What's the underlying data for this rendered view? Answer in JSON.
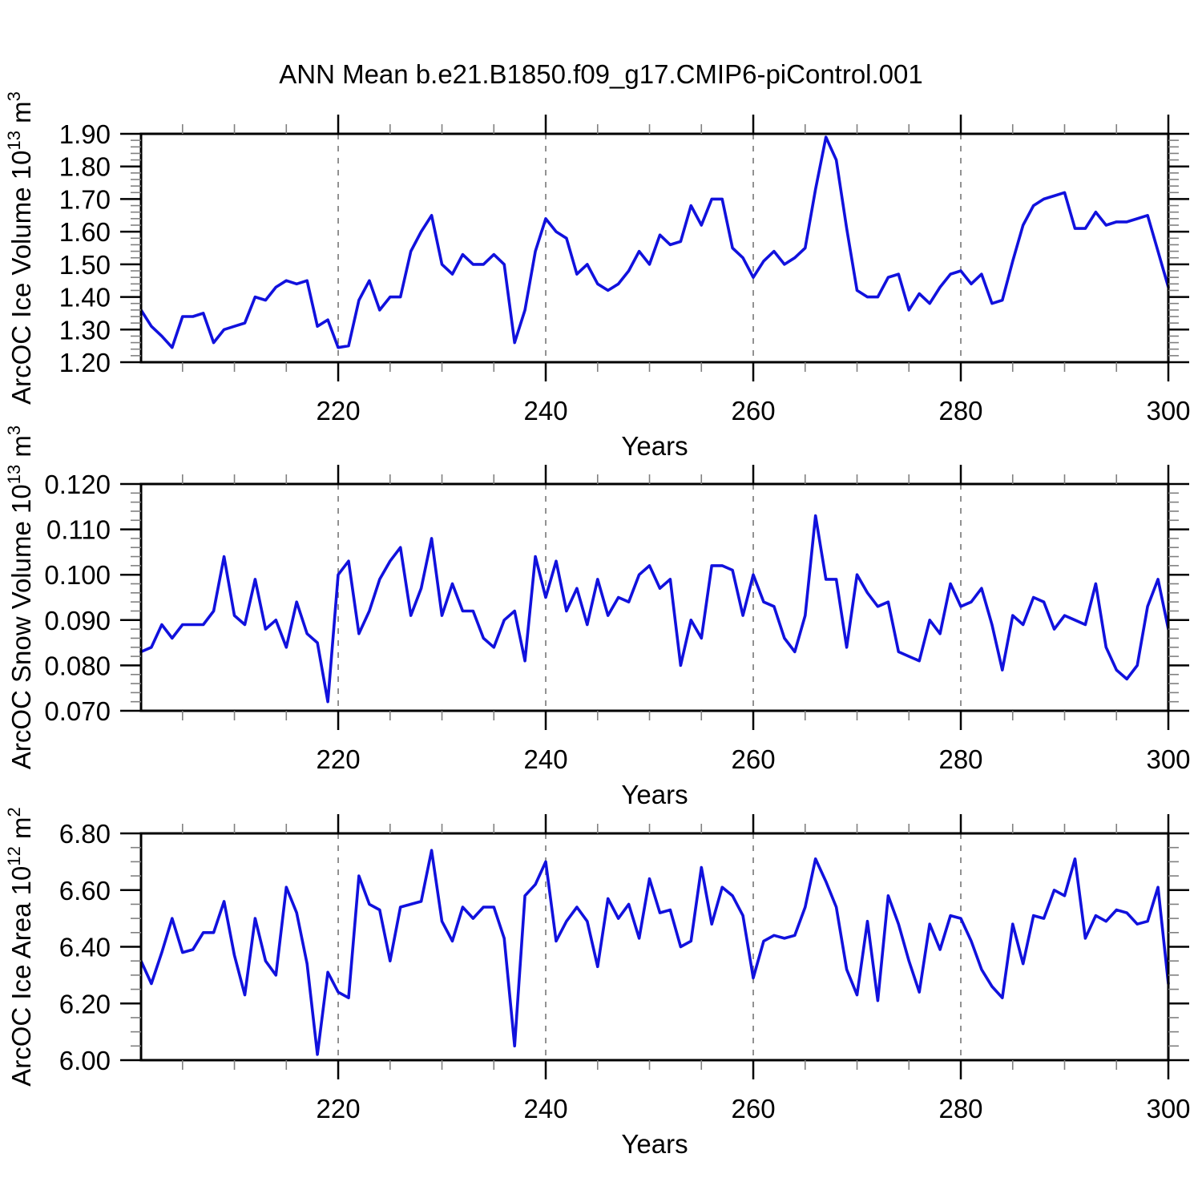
{
  "title": "ANN Mean b.e21.B1850.f09_g17.CMIP6-piControl.001",
  "axis": {
    "x_label": "Years",
    "x_start": 201,
    "x_end": 300,
    "x_major_ticks": [
      220,
      240,
      260,
      280,
      300
    ],
    "x_minor_step": 5,
    "x_grid_lines": [
      220,
      240,
      260,
      280
    ]
  },
  "styles": {
    "line_color": "#1111dd",
    "frame_color": "#000000",
    "major_tick_color": "#000000",
    "minor_tick_color": "#808080",
    "grid_color": "#777777",
    "text_color": "#000000",
    "background": "#ffffff"
  },
  "chart_data": {
    "type": "line",
    "title": "ANN Mean b.e21.B1850.f09_g17.CMIP6-piControl.001",
    "xlabel": "Years",
    "x_range": [
      201,
      300
    ],
    "x_step": 1,
    "grid": "vertical-dashed-at-220-240-260-280",
    "legend": "none",
    "panels": [
      {
        "ylabel": "ArcOC Ice Volume 10^13 m^3",
        "ylim": [
          1.2,
          1.9
        ],
        "ytick_major": 0.1,
        "ytick_minor": 0.02,
        "ytick_decimals": 2,
        "values": [
          1.36,
          1.31,
          1.28,
          1.245,
          1.34,
          1.34,
          1.35,
          1.26,
          1.3,
          1.31,
          1.32,
          1.4,
          1.39,
          1.43,
          1.45,
          1.44,
          1.45,
          1.31,
          1.33,
          1.245,
          1.25,
          1.39,
          1.45,
          1.36,
          1.4,
          1.4,
          1.54,
          1.6,
          1.65,
          1.5,
          1.47,
          1.53,
          1.5,
          1.5,
          1.53,
          1.5,
          1.26,
          1.36,
          1.54,
          1.64,
          1.6,
          1.58,
          1.47,
          1.5,
          1.44,
          1.42,
          1.44,
          1.48,
          1.54,
          1.5,
          1.59,
          1.56,
          1.57,
          1.68,
          1.62,
          1.7,
          1.7,
          1.55,
          1.52,
          1.46,
          1.51,
          1.54,
          1.5,
          1.52,
          1.55,
          1.73,
          1.89,
          1.82,
          1.61,
          1.42,
          1.4,
          1.4,
          1.46,
          1.47,
          1.36,
          1.41,
          1.38,
          1.43,
          1.47,
          1.48,
          1.44,
          1.47,
          1.38,
          1.39,
          1.51,
          1.62,
          1.68,
          1.7,
          1.71,
          1.72,
          1.61,
          1.61,
          1.66,
          1.62,
          1.63,
          1.63,
          1.64,
          1.65,
          1.54,
          1.43
        ]
      },
      {
        "ylabel": "ArcOC Snow Volume 10^13 m^3",
        "ylim": [
          0.07,
          0.12
        ],
        "ytick_major": 0.01,
        "ytick_minor": 0.002,
        "ytick_decimals": 3,
        "values": [
          0.083,
          0.084,
          0.089,
          0.086,
          0.089,
          0.089,
          0.089,
          0.092,
          0.104,
          0.091,
          0.089,
          0.099,
          0.088,
          0.09,
          0.084,
          0.094,
          0.087,
          0.085,
          0.072,
          0.1,
          0.103,
          0.087,
          0.092,
          0.099,
          0.103,
          0.106,
          0.091,
          0.097,
          0.108,
          0.091,
          0.098,
          0.092,
          0.092,
          0.086,
          0.084,
          0.09,
          0.092,
          0.081,
          0.104,
          0.095,
          0.103,
          0.092,
          0.097,
          0.089,
          0.099,
          0.091,
          0.095,
          0.094,
          0.1,
          0.102,
          0.097,
          0.099,
          0.08,
          0.09,
          0.086,
          0.102,
          0.102,
          0.101,
          0.091,
          0.1,
          0.094,
          0.093,
          0.086,
          0.083,
          0.091,
          0.113,
          0.099,
          0.099,
          0.084,
          0.1,
          0.096,
          0.093,
          0.094,
          0.083,
          0.082,
          0.081,
          0.09,
          0.087,
          0.098,
          0.093,
          0.094,
          0.097,
          0.089,
          0.079,
          0.091,
          0.089,
          0.095,
          0.094,
          0.088,
          0.091,
          0.09,
          0.089,
          0.098,
          0.084,
          0.079,
          0.077,
          0.08,
          0.093,
          0.099,
          0.088
        ]
      },
      {
        "ylabel": "ArcOC Ice Area 10^12 m^2",
        "ylim": [
          6.0,
          6.8
        ],
        "ytick_major": 0.2,
        "ytick_minor": 0.05,
        "ytick_decimals": 2,
        "values": [
          6.35,
          6.27,
          6.38,
          6.5,
          6.38,
          6.39,
          6.45,
          6.45,
          6.56,
          6.37,
          6.23,
          6.5,
          6.35,
          6.3,
          6.61,
          6.52,
          6.34,
          6.02,
          6.31,
          6.24,
          6.22,
          6.65,
          6.55,
          6.53,
          6.35,
          6.54,
          6.55,
          6.56,
          6.74,
          6.49,
          6.42,
          6.54,
          6.5,
          6.54,
          6.54,
          6.43,
          6.05,
          6.58,
          6.62,
          6.7,
          6.42,
          6.49,
          6.54,
          6.49,
          6.33,
          6.57,
          6.5,
          6.55,
          6.43,
          6.64,
          6.52,
          6.53,
          6.4,
          6.42,
          6.68,
          6.48,
          6.61,
          6.58,
          6.51,
          6.29,
          6.42,
          6.44,
          6.43,
          6.44,
          6.54,
          6.71,
          6.63,
          6.54,
          6.32,
          6.23,
          6.49,
          6.21,
          6.58,
          6.48,
          6.35,
          6.24,
          6.48,
          6.39,
          6.51,
          6.5,
          6.42,
          6.32,
          6.26,
          6.22,
          6.48,
          6.34,
          6.51,
          6.5,
          6.6,
          6.58,
          6.71,
          6.43,
          6.51,
          6.49,
          6.53,
          6.52,
          6.48,
          6.49,
          6.61,
          6.27
        ]
      }
    ]
  }
}
